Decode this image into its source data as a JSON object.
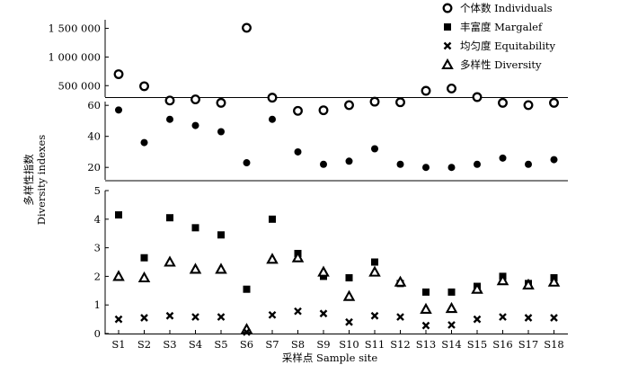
{
  "chart_data": {
    "type": "scatter",
    "xlabel": "采样点 Sample site",
    "ylabel_lines": [
      "多样性指数",
      "Diversity indexes"
    ],
    "categories": [
      "S1",
      "S2",
      "S3",
      "S4",
      "S5",
      "S6",
      "S7",
      "S8",
      "S9",
      "S10",
      "S11",
      "S12",
      "S13",
      "S14",
      "S15",
      "S16",
      "S17",
      "S18"
    ],
    "panels": [
      {
        "name": "individuals",
        "ylim": [
          300000,
          1650000
        ],
        "ticks": [
          500000,
          1000000,
          1500000
        ],
        "tick_labels": [
          "500 000",
          "1 000 000",
          "1 500 000"
        ],
        "series": [
          "Individuals"
        ]
      },
      {
        "name": "margalef",
        "ylim": [
          12,
          63
        ],
        "ticks": [
          20,
          40,
          60
        ],
        "tick_labels": [
          "20",
          "40",
          "60"
        ],
        "series": [
          "Margalef"
        ]
      },
      {
        "name": "indices",
        "ylim": [
          0,
          5
        ],
        "ticks": [
          0,
          1,
          2,
          3,
          4,
          5
        ],
        "tick_labels": [
          "0",
          "1",
          "2",
          "3",
          "4",
          "5"
        ],
        "series": [
          "Margalef",
          "Equitability",
          "Diversity"
        ]
      }
    ],
    "series": [
      {
        "name": "个体数 Individuals",
        "key": "Individuals",
        "marker": "circle-open",
        "values": [
          700000,
          490000,
          240000,
          260000,
          200000,
          1510000,
          290000,
          60000,
          70000,
          160000,
          220000,
          210000,
          410000,
          450000,
          300000,
          200000,
          160000,
          200000
        ]
      },
      {
        "name": "丰富度 Margalef",
        "key": "Margalef",
        "marker": "square-filled",
        "split": {
          "top_panel_indices": [
            0,
            1,
            2,
            3,
            4,
            5,
            6,
            7,
            8,
            9,
            10,
            11,
            12,
            13,
            14,
            15,
            16,
            17
          ],
          "top_values": [
            57,
            36,
            51,
            47,
            43,
            23,
            51,
            30,
            22,
            24,
            32,
            22,
            20,
            20,
            22,
            26,
            22,
            25
          ]
        },
        "values": [
          4.15,
          2.65,
          4.05,
          3.7,
          3.45,
          1.55,
          4.0,
          2.8,
          2.0,
          1.95,
          2.5,
          1.75,
          1.45,
          1.45,
          1.65,
          2.0,
          1.75,
          1.95
        ]
      },
      {
        "name": "均匀度 Equitability",
        "key": "Equitability",
        "marker": "x",
        "values": [
          0.5,
          0.55,
          0.62,
          0.58,
          0.58,
          0.05,
          0.65,
          0.78,
          0.7,
          0.4,
          0.62,
          0.58,
          0.28,
          0.3,
          0.5,
          0.58,
          0.55,
          0.55
        ]
      },
      {
        "name": "多样性 Diversity",
        "key": "Diversity",
        "marker": "triangle-open",
        "values": [
          2.0,
          1.95,
          2.5,
          2.25,
          2.25,
          0.15,
          2.6,
          2.65,
          2.15,
          1.3,
          2.15,
          1.8,
          0.85,
          0.88,
          1.55,
          1.85,
          1.7,
          1.8
        ]
      }
    ],
    "legend": {
      "position": "top-right"
    }
  }
}
